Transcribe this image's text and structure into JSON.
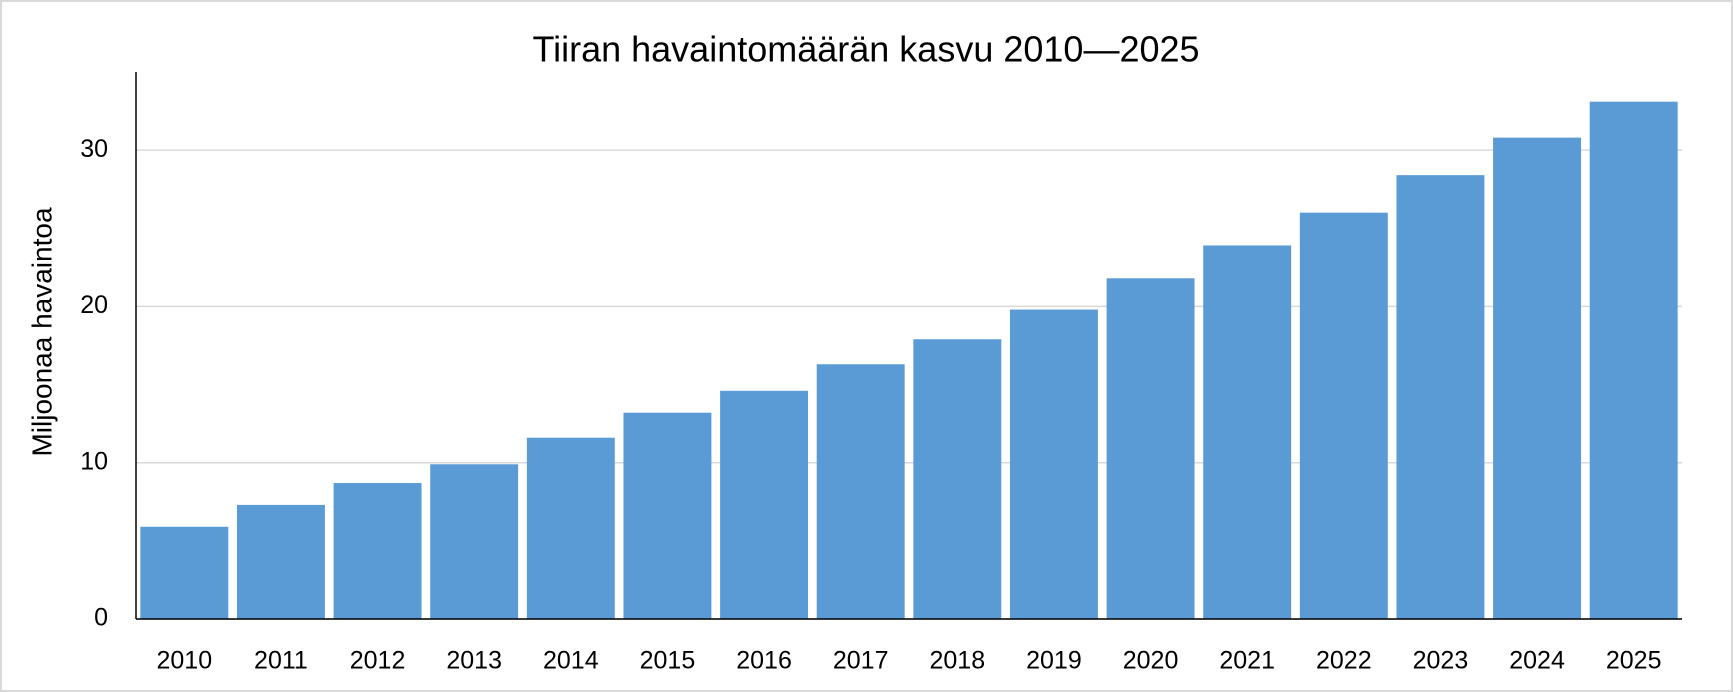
{
  "chart_data": {
    "type": "bar",
    "title": "Tiiran havaintomäärän kasvu 2010—2025",
    "y_label": "Miljoonaa havaintoa",
    "categories": [
      "2010",
      "2011",
      "2012",
      "2013",
      "2014",
      "2015",
      "2016",
      "2017",
      "2018",
      "2019",
      "2020",
      "2021",
      "2022",
      "2023",
      "2024",
      "2025"
    ],
    "values": [
      5.9,
      7.3,
      8.7,
      9.9,
      11.6,
      13.2,
      14.6,
      16.3,
      17.9,
      19.8,
      21.8,
      23.9,
      26.0,
      28.4,
      30.8,
      33.1
    ],
    "color": "#5b9bd5",
    "ylim": [
      0,
      35
    ],
    "yticks": [
      0,
      10,
      20,
      30
    ],
    "grid": true
  }
}
